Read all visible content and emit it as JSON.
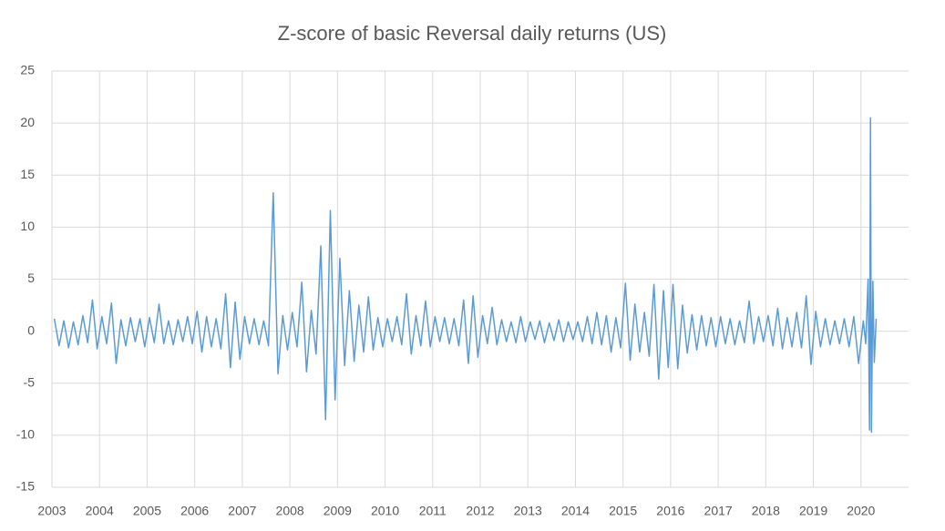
{
  "chart_data": {
    "type": "line",
    "title": "Z-score of basic Reversal daily returns (US)",
    "color": "#5b9bd5",
    "grid": true,
    "xlim": [
      2003,
      2021
    ],
    "xticks": [
      2003,
      2004,
      2005,
      2006,
      2007,
      2008,
      2009,
      2010,
      2011,
      2012,
      2013,
      2014,
      2015,
      2016,
      2017,
      2018,
      2019,
      2020
    ],
    "ylim": [
      -15,
      25
    ],
    "yticks": [
      -15,
      -10,
      -5,
      0,
      5,
      10,
      15,
      20,
      25
    ],
    "x": [
      2003.05,
      2003.15,
      2003.25,
      2003.35,
      2003.45,
      2003.55,
      2003.65,
      2003.75,
      2003.85,
      2003.95,
      2004.05,
      2004.15,
      2004.25,
      2004.35,
      2004.45,
      2004.55,
      2004.65,
      2004.75,
      2004.85,
      2004.95,
      2005.05,
      2005.15,
      2005.25,
      2005.35,
      2005.45,
      2005.55,
      2005.65,
      2005.75,
      2005.85,
      2005.95,
      2006.05,
      2006.15,
      2006.25,
      2006.35,
      2006.45,
      2006.55,
      2006.65,
      2006.75,
      2006.85,
      2006.95,
      2007.05,
      2007.15,
      2007.25,
      2007.35,
      2007.45,
      2007.55,
      2007.65,
      2007.75,
      2007.85,
      2007.95,
      2008.05,
      2008.15,
      2008.25,
      2008.35,
      2008.45,
      2008.55,
      2008.65,
      2008.75,
      2008.85,
      2008.95,
      2009.05,
      2009.15,
      2009.25,
      2009.35,
      2009.45,
      2009.55,
      2009.65,
      2009.75,
      2009.85,
      2009.95,
      2010.05,
      2010.15,
      2010.25,
      2010.35,
      2010.45,
      2010.55,
      2010.65,
      2010.75,
      2010.85,
      2010.95,
      2011.05,
      2011.15,
      2011.25,
      2011.35,
      2011.45,
      2011.55,
      2011.65,
      2011.75,
      2011.85,
      2011.95,
      2012.05,
      2012.15,
      2012.25,
      2012.35,
      2012.45,
      2012.55,
      2012.65,
      2012.75,
      2012.85,
      2012.95,
      2013.05,
      2013.15,
      2013.25,
      2013.35,
      2013.45,
      2013.55,
      2013.65,
      2013.75,
      2013.85,
      2013.95,
      2014.05,
      2014.15,
      2014.25,
      2014.35,
      2014.45,
      2014.55,
      2014.65,
      2014.75,
      2014.85,
      2014.95,
      2015.05,
      2015.15,
      2015.25,
      2015.35,
      2015.45,
      2015.55,
      2015.65,
      2015.75,
      2015.85,
      2015.95,
      2016.05,
      2016.15,
      2016.25,
      2016.35,
      2016.45,
      2016.55,
      2016.65,
      2016.75,
      2016.85,
      2016.95,
      2017.05,
      2017.15,
      2017.25,
      2017.35,
      2017.45,
      2017.55,
      2017.65,
      2017.75,
      2017.85,
      2017.95,
      2018.05,
      2018.15,
      2018.25,
      2018.35,
      2018.45,
      2018.55,
      2018.65,
      2018.75,
      2018.85,
      2018.95,
      2019.05,
      2019.15,
      2019.25,
      2019.35,
      2019.45,
      2019.55,
      2019.65,
      2019.75,
      2019.85,
      2019.95,
      2020.05,
      2020.1,
      2020.15,
      2020.18,
      2020.2,
      2020.22,
      2020.25,
      2020.28,
      2020.32
    ],
    "values": [
      1.2,
      -1.4,
      1.0,
      -1.6,
      0.9,
      -1.3,
      1.5,
      -1.1,
      3.0,
      -1.7,
      1.4,
      -1.2,
      2.7,
      -3.1,
      1.1,
      -1.4,
      1.3,
      -1.0,
      1.2,
      -1.5,
      1.3,
      -1.1,
      2.6,
      -1.2,
      1.0,
      -1.3,
      1.1,
      -1.0,
      1.4,
      -1.2,
      1.9,
      -2.0,
      1.4,
      -1.5,
      1.2,
      -1.7,
      3.6,
      -3.5,
      2.8,
      -2.7,
      1.4,
      -1.2,
      1.2,
      -1.3,
      1.0,
      -1.4,
      13.3,
      -4.1,
      1.5,
      -1.8,
      1.8,
      -1.5,
      4.7,
      -3.9,
      2.0,
      -2.2,
      8.2,
      -8.5,
      11.6,
      -6.6,
      7.0,
      -3.3,
      3.9,
      -2.9,
      2.5,
      -2.0,
      3.3,
      -1.8,
      1.3,
      -1.5,
      1.2,
      -1.0,
      1.4,
      -1.3,
      3.6,
      -2.2,
      1.5,
      -1.4,
      2.9,
      -1.5,
      1.4,
      -1.0,
      1.3,
      -1.2,
      1.2,
      -1.4,
      3.0,
      -3.1,
      3.4,
      -2.5,
      1.5,
      -1.2,
      2.3,
      -1.3,
      1.1,
      -1.0,
      0.9,
      -1.1,
      1.4,
      -1.0,
      0.9,
      -0.8,
      1.0,
      -1.1,
      0.8,
      -0.9,
      1.1,
      -1.0,
      0.9,
      -0.8,
      0.9,
      -1.0,
      1.4,
      -1.2,
      1.8,
      -1.3,
      1.5,
      -2.0,
      1.3,
      -1.6,
      4.6,
      -2.8,
      2.6,
      -2.0,
      1.8,
      -2.4,
      4.5,
      -4.6,
      3.9,
      -3.5,
      4.5,
      -3.6,
      2.5,
      -2.1,
      1.6,
      -1.8,
      1.5,
      -1.4,
      1.3,
      -1.5,
      1.4,
      -1.2,
      1.2,
      -1.3,
      1.0,
      -1.1,
      2.9,
      -1.2,
      1.4,
      -1.0,
      1.5,
      -1.4,
      2.2,
      -1.7,
      1.3,
      -1.5,
      1.8,
      -1.6,
      3.4,
      -3.2,
      1.9,
      -1.5,
      1.2,
      -1.3,
      1.0,
      -1.2,
      1.2,
      -1.5,
      1.4,
      -3.1,
      1.0,
      -1.2,
      5.0,
      -9.5,
      20.5,
      -9.7,
      4.8,
      -3.0,
      1.2
    ]
  }
}
